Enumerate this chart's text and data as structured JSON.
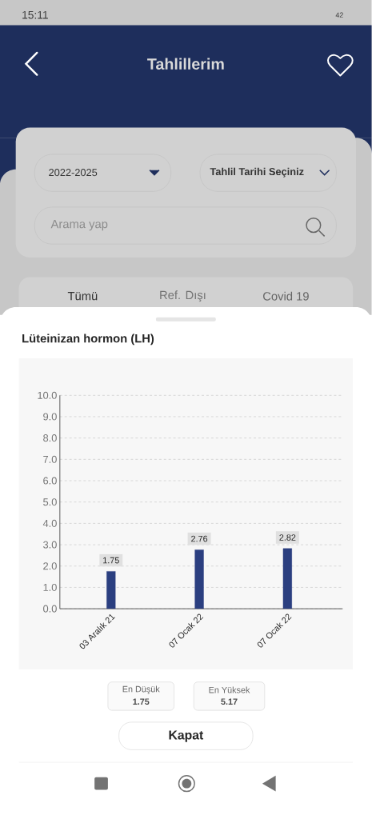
{
  "chart_data": {
    "type": "bar",
    "title": "Lüteinizan hormon (LH)",
    "categories": [
      "03 Aralık 21",
      "07 Ocak 22",
      "07 Ocak 22"
    ],
    "values": [
      1.75,
      2.76,
      2.82
    ],
    "color": "#2b3f80",
    "data_labels": true,
    "ylim": [
      0,
      10
    ],
    "yticks": [
      {
        "value": 0,
        "label": "0.0"
      },
      {
        "value": 1,
        "label": "1.0"
      },
      {
        "value": 2,
        "label": "2.0"
      },
      {
        "value": 3,
        "label": "3.0"
      },
      {
        "value": 4,
        "label": "4.0"
      },
      {
        "value": 5,
        "label": "5.0"
      },
      {
        "value": 6,
        "label": "6.0"
      },
      {
        "value": 7,
        "label": "7.0"
      },
      {
        "value": 8,
        "label": "8.0"
      },
      {
        "value": 9,
        "label": "9.0"
      },
      {
        "value": 10,
        "label": "10.0"
      }
    ],
    "grid": "y",
    "annotations": [
      "15:11",
      "42",
      "Tahlillerim",
      "2022-2025",
      "Tahlil Tarihi Seçiniz",
      "Arama yap",
      "Tümü",
      "Ref. Dışı",
      "Covid 19",
      "En Düşük",
      "1.75",
      "En Yüksek",
      "5.17",
      "Kapat"
    ]
  }
}
